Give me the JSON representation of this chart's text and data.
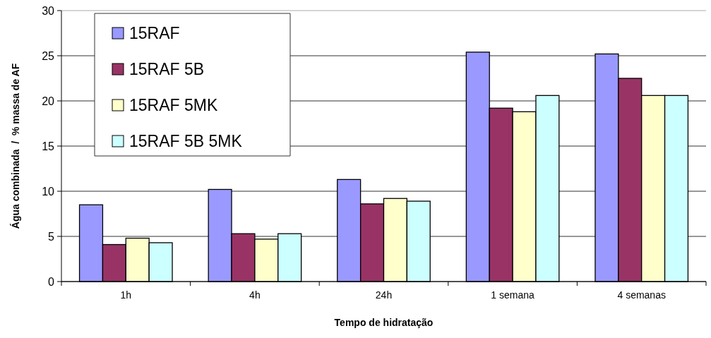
{
  "chart_data": {
    "type": "bar",
    "xlabel": "Tempo de hidratação",
    "ylabel": "Água combinada  /  % massa de AF",
    "categories": [
      "1h",
      "4h",
      "24h",
      "1 semana",
      "4 semanas"
    ],
    "series": [
      {
        "name": "15RAF",
        "color": "#9999ff",
        "values": [
          8.5,
          10.2,
          11.3,
          25.4,
          25.2
        ]
      },
      {
        "name": "15RAF 5B",
        "color": "#993366",
        "values": [
          4.1,
          5.3,
          8.6,
          19.2,
          22.5
        ]
      },
      {
        "name": "15RAF 5MK",
        "color": "#ffffcc",
        "values": [
          4.8,
          4.7,
          9.2,
          18.8,
          20.6
        ]
      },
      {
        "name": "15RAF 5B 5MK",
        "color": "#ccffff",
        "values": [
          4.3,
          5.3,
          8.9,
          20.6,
          20.6
        ]
      }
    ],
    "ylim": [
      0,
      30
    ],
    "yticks": [
      0,
      5,
      10,
      15,
      20,
      25,
      30
    ],
    "grid": "y",
    "legend": "top left"
  }
}
